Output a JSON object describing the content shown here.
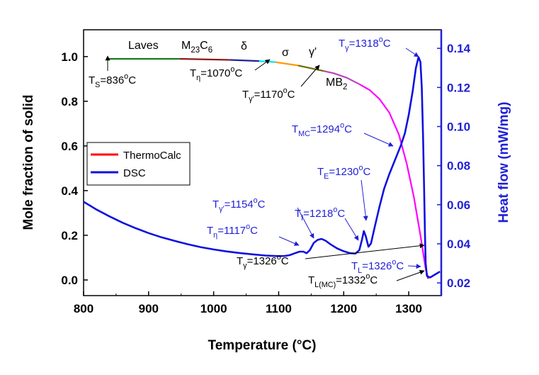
{
  "chart_data": {
    "type": "line",
    "xlabel": "Temperature (°C)",
    "ylabel_left": "Mole fraction of solid",
    "ylabel_right": "Heat flow (mW/mg)",
    "xlim": [
      800,
      1350
    ],
    "ylim_left": [
      -0.07,
      1.12
    ],
    "ylim_right": [
      0.0135,
      0.1495
    ],
    "x_ticks": [
      800,
      900,
      1000,
      1100,
      1200,
      1300
    ],
    "y_ticks_left": [
      0.0,
      0.2,
      0.4,
      0.6,
      0.8,
      1.0
    ],
    "y_ticks_right": [
      0.02,
      0.04,
      0.06,
      0.08,
      0.1,
      0.12,
      0.14
    ],
    "legend": [
      {
        "name": "ThermoCalc",
        "color": "#ff0000"
      },
      {
        "name": "DSC",
        "color": "#1010e0"
      }
    ],
    "legend_position": "center-left",
    "thermocalc_segments": [
      {
        "label": "Laves",
        "color": "#1a7a1a",
        "points": [
          [
            836,
            0.99
          ],
          [
            948,
            0.99
          ]
        ]
      },
      {
        "label": "M23C6",
        "color": "#8b1a1a",
        "points": [
          [
            948,
            0.99
          ],
          [
            1025,
            0.985
          ]
        ]
      },
      {
        "label": "δ",
        "color": "#222299",
        "points": [
          [
            1025,
            0.985
          ],
          [
            1070,
            0.98
          ]
        ]
      },
      {
        "label": "",
        "color": "#00e5ee",
        "points": [
          [
            1070,
            0.98
          ],
          [
            1095,
            0.975
          ]
        ]
      },
      {
        "label": "σ",
        "color": "#ff9900",
        "points": [
          [
            1095,
            0.975
          ],
          [
            1130,
            0.96
          ]
        ]
      },
      {
        "label": "γ'",
        "color": "#6b6b00",
        "points": [
          [
            1130,
            0.96
          ],
          [
            1170,
            0.935
          ]
        ]
      },
      {
        "label": "MB2",
        "color": "#bb44bb",
        "points": [
          [
            1170,
            0.935
          ],
          [
            1185,
            0.925
          ],
          [
            1205,
            0.905
          ],
          [
            1225,
            0.875
          ]
        ]
      },
      {
        "label": "",
        "color": "#ff00ff",
        "points": [
          [
            1225,
            0.875
          ],
          [
            1240,
            0.85
          ],
          [
            1255,
            0.81
          ],
          [
            1270,
            0.75
          ],
          [
            1285,
            0.65
          ],
          [
            1297,
            0.52
          ],
          [
            1308,
            0.37
          ],
          [
            1318,
            0.2
          ],
          [
            1326,
            0.05
          ]
        ]
      },
      {
        "label": "",
        "color": "#ff0000",
        "points": [
          [
            1326,
            0.05
          ],
          [
            1330,
            0.005
          ]
        ]
      }
    ],
    "dsc_series": {
      "name": "DSC",
      "color": "#1010e0",
      "points": [
        [
          800,
          0.0615
        ],
        [
          820,
          0.0575
        ],
        [
          840,
          0.054
        ],
        [
          860,
          0.0508
        ],
        [
          880,
          0.048
        ],
        [
          900,
          0.0455
        ],
        [
          920,
          0.0433
        ],
        [
          940,
          0.0415
        ],
        [
          960,
          0.0398
        ],
        [
          980,
          0.0383
        ],
        [
          1000,
          0.0371
        ],
        [
          1020,
          0.0361
        ],
        [
          1040,
          0.0353
        ],
        [
          1060,
          0.0346
        ],
        [
          1080,
          0.034
        ],
        [
          1100,
          0.0337
        ],
        [
          1110,
          0.0338
        ],
        [
          1117,
          0.0342
        ],
        [
          1125,
          0.0352
        ],
        [
          1132,
          0.036
        ],
        [
          1138,
          0.036
        ],
        [
          1143,
          0.0352
        ],
        [
          1148,
          0.0368
        ],
        [
          1154,
          0.0405
        ],
        [
          1160,
          0.042
        ],
        [
          1166,
          0.0425
        ],
        [
          1172,
          0.0416
        ],
        [
          1180,
          0.0397
        ],
        [
          1190,
          0.0376
        ],
        [
          1200,
          0.0362
        ],
        [
          1210,
          0.0352
        ],
        [
          1218,
          0.035
        ],
        [
          1224,
          0.0368
        ],
        [
          1228,
          0.042
        ],
        [
          1231,
          0.0465
        ],
        [
          1234,
          0.0438
        ],
        [
          1238,
          0.0385
        ],
        [
          1242,
          0.0402
        ],
        [
          1248,
          0.049
        ],
        [
          1255,
          0.059
        ],
        [
          1262,
          0.068
        ],
        [
          1270,
          0.0755
        ],
        [
          1280,
          0.0838
        ],
        [
          1288,
          0.0905
        ],
        [
          1294,
          0.0965
        ],
        [
          1300,
          0.106
        ],
        [
          1306,
          0.118
        ],
        [
          1311,
          0.13
        ],
        [
          1315,
          0.1355
        ],
        [
          1318,
          0.133
        ],
        [
          1320,
          0.12
        ],
        [
          1322,
          0.095
        ],
        [
          1323.5,
          0.07
        ],
        [
          1325,
          0.045
        ],
        [
          1326,
          0.03
        ],
        [
          1328,
          0.0235
        ],
        [
          1333,
          0.0228
        ],
        [
          1340,
          0.0242
        ],
        [
          1348,
          0.0258
        ]
      ]
    },
    "annotations": [
      {
        "key": "ts",
        "parts": [
          [
            "T",
            ""
          ],
          [
            "S",
            "sub"
          ],
          [
            "=836",
            ""
          ],
          [
            "o",
            "sup"
          ],
          [
            "C",
            ""
          ]
        ]
      },
      {
        "key": "teta",
        "parts": [
          [
            "T",
            ""
          ],
          [
            "η",
            "sub"
          ],
          [
            "=1070",
            ""
          ],
          [
            "o",
            "sup"
          ],
          [
            "C",
            ""
          ]
        ]
      },
      {
        "key": "tgp",
        "parts": [
          [
            "T",
            ""
          ],
          [
            "γ'",
            "sub"
          ],
          [
            "=1170",
            ""
          ],
          [
            "o",
            "sup"
          ],
          [
            "C",
            ""
          ]
        ]
      },
      {
        "key": "tg_top",
        "parts": [
          [
            "T",
            ""
          ],
          [
            "γ",
            "sub"
          ],
          [
            "=1318",
            ""
          ],
          [
            "o",
            "sup"
          ],
          [
            "C",
            ""
          ]
        ]
      },
      {
        "key": "tmc",
        "parts": [
          [
            "T",
            ""
          ],
          [
            "MC",
            "sub"
          ],
          [
            "=1294",
            ""
          ],
          [
            "o",
            "sup"
          ],
          [
            "C",
            ""
          ]
        ]
      },
      {
        "key": "te",
        "parts": [
          [
            "T",
            ""
          ],
          [
            "E",
            "sub"
          ],
          [
            "=1230",
            ""
          ],
          [
            "o",
            "sup"
          ],
          [
            "C",
            ""
          ]
        ]
      },
      {
        "key": "tgp_dsc",
        "parts": [
          [
            "T",
            ""
          ],
          [
            "γ'",
            "sub"
          ],
          [
            "=1154",
            ""
          ],
          [
            "o",
            "sup"
          ],
          [
            "C",
            ""
          ]
        ]
      },
      {
        "key": "tf",
        "parts": [
          [
            "T",
            ""
          ],
          [
            "f",
            "sub"
          ],
          [
            "=1218",
            ""
          ],
          [
            "o",
            "sup"
          ],
          [
            "C",
            ""
          ]
        ]
      },
      {
        "key": "teta_dsc",
        "parts": [
          [
            "T",
            ""
          ],
          [
            "η",
            "sub"
          ],
          [
            "=1117",
            ""
          ],
          [
            "o",
            "sup"
          ],
          [
            "C",
            ""
          ]
        ]
      },
      {
        "key": "tg_bottom",
        "parts": [
          [
            "T",
            ""
          ],
          [
            "γ",
            "sub"
          ],
          [
            "=1326",
            ""
          ],
          [
            "o",
            "sup"
          ],
          [
            "C",
            ""
          ]
        ]
      },
      {
        "key": "tl",
        "parts": [
          [
            "T",
            ""
          ],
          [
            "L",
            "sub"
          ],
          [
            "=1326",
            ""
          ],
          [
            "o",
            "sup"
          ],
          [
            "C",
            ""
          ]
        ]
      },
      {
        "key": "tlmc",
        "parts": [
          [
            "T",
            ""
          ],
          [
            "L(MC)",
            "sub"
          ],
          [
            "=1332",
            ""
          ],
          [
            "o",
            "sup"
          ],
          [
            "C",
            ""
          ]
        ]
      }
    ],
    "phase_labels": [
      {
        "key": "laves",
        "parts": [
          [
            "Laves",
            ""
          ]
        ]
      },
      {
        "key": "m23c6",
        "parts": [
          [
            "M",
            ""
          ],
          [
            "23",
            "sub"
          ],
          [
            "C",
            ""
          ],
          [
            "6",
            "sub"
          ]
        ]
      },
      {
        "key": "delta",
        "parts": [
          [
            "δ",
            ""
          ]
        ]
      },
      {
        "key": "sigma",
        "parts": [
          [
            "σ",
            ""
          ]
        ]
      },
      {
        "key": "gammap",
        "parts": [
          [
            "γ'",
            ""
          ]
        ]
      },
      {
        "key": "mb2",
        "parts": [
          [
            "MB",
            ""
          ],
          [
            "2",
            "sub"
          ]
        ]
      }
    ]
  }
}
